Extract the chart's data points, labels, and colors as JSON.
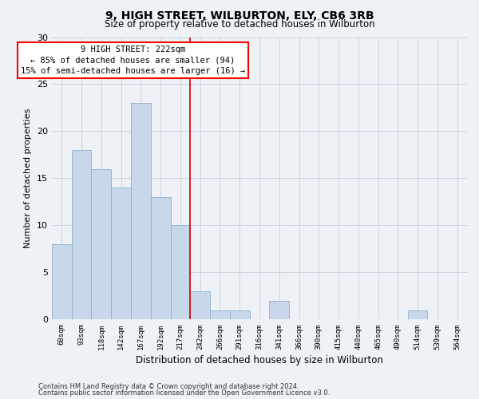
{
  "title1": "9, HIGH STREET, WILBURTON, ELY, CB6 3RB",
  "title2": "Size of property relative to detached houses in Wilburton",
  "xlabel": "Distribution of detached houses by size in Wilburton",
  "ylabel": "Number of detached properties",
  "bin_labels": [
    "68sqm",
    "93sqm",
    "118sqm",
    "142sqm",
    "167sqm",
    "192sqm",
    "217sqm",
    "242sqm",
    "266sqm",
    "291sqm",
    "316sqm",
    "341sqm",
    "366sqm",
    "390sqm",
    "415sqm",
    "440sqm",
    "465sqm",
    "490sqm",
    "514sqm",
    "539sqm",
    "564sqm"
  ],
  "bar_values": [
    8,
    18,
    16,
    14,
    23,
    13,
    10,
    3,
    1,
    1,
    0,
    2,
    0,
    0,
    0,
    0,
    0,
    0,
    1,
    0,
    0
  ],
  "bar_color": "#c8d8ea",
  "bar_edge_color": "#8ab0c8",
  "grid_color": "#c8d4e0",
  "vline_x": 6.5,
  "vline_color": "#cc0000",
  "annotation_box_text": "9 HIGH STREET: 222sqm\n← 85% of detached houses are smaller (94)\n15% of semi-detached houses are larger (16) →",
  "ylim": [
    0,
    30
  ],
  "yticks": [
    0,
    5,
    10,
    15,
    20,
    25,
    30
  ],
  "footer1": "Contains HM Land Registry data © Crown copyright and database right 2024.",
  "footer2": "Contains public sector information licensed under the Open Government Licence v3.0.",
  "background_color": "#eef2f6",
  "plot_background": "#eef2f6"
}
